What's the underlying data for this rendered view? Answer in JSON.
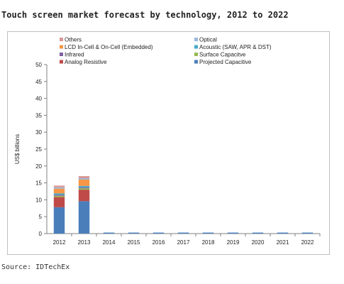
{
  "chart_data": {
    "type": "bar",
    "stacked": true,
    "title": "Touch screen market forecast by technology, 2012 to 2022",
    "xlabel": "",
    "ylabel": "US$ billions",
    "ylim": [
      0,
      50
    ],
    "yticks": [
      0,
      5,
      10,
      15,
      20,
      25,
      30,
      35,
      40,
      45,
      50
    ],
    "grid": false,
    "legend_position": "top",
    "categories": [
      "2012",
      "2013",
      "2014",
      "2015",
      "2016",
      "2017",
      "2018",
      "2019",
      "2020",
      "2021",
      "2022"
    ],
    "series": [
      {
        "name": "Projected Capacitive",
        "color": "#4a7ebb",
        "values": [
          7.8,
          9.6,
          0.3,
          0.3,
          0.3,
          0.3,
          0.3,
          0.3,
          0.3,
          0.3,
          0.3
        ]
      },
      {
        "name": "Analog Resistive",
        "color": "#be4b48",
        "values": [
          3.0,
          3.4,
          0,
          0,
          0,
          0,
          0,
          0,
          0,
          0,
          0
        ]
      },
      {
        "name": "Surface Capacitve",
        "color": "#98b954",
        "values": [
          0.4,
          0.4,
          0,
          0,
          0,
          0,
          0,
          0,
          0,
          0,
          0
        ]
      },
      {
        "name": "Infrared",
        "color": "#7d60a0",
        "values": [
          0.3,
          0.3,
          0,
          0,
          0,
          0,
          0,
          0,
          0,
          0,
          0
        ]
      },
      {
        "name": "Acoustic (SAW, APR & DST)",
        "color": "#46aac5",
        "values": [
          0.4,
          0.4,
          0,
          0,
          0,
          0,
          0,
          0,
          0,
          0,
          0
        ]
      },
      {
        "name": "LCD In-Cell & On-Cell (Embedded)",
        "color": "#f79646",
        "values": [
          1.4,
          1.9,
          0,
          0,
          0,
          0,
          0,
          0,
          0,
          0,
          0
        ]
      },
      {
        "name": "Optical",
        "color": "#9bb7d9",
        "values": [
          0.4,
          0.4,
          0,
          0,
          0,
          0,
          0,
          0,
          0,
          0,
          0
        ]
      },
      {
        "name": "Others",
        "color": "#d99694",
        "values": [
          0.5,
          0.6,
          0,
          0,
          0,
          0,
          0,
          0,
          0,
          0,
          0
        ]
      }
    ],
    "legend_order": [
      "Others",
      "Optical",
      "LCD In-Cell & On-Cell (Embedded)",
      "Acoustic (SAW, APR & DST)",
      "Infrared",
      "Surface Capacitve",
      "Analog Resistive",
      "Projected Capacitive"
    ]
  },
  "source": "Source: IDTechEx"
}
